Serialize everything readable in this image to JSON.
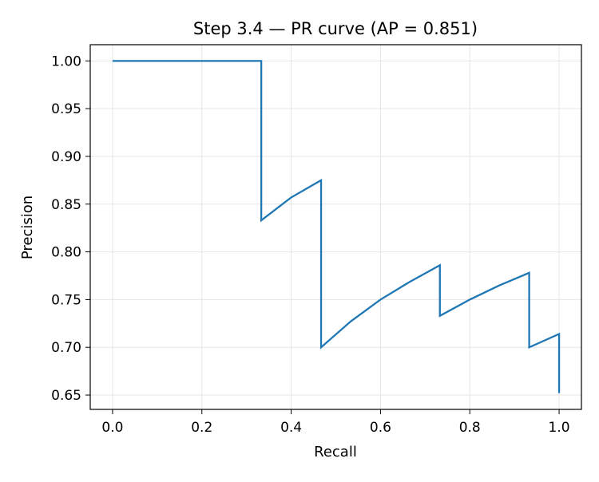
{
  "chart_data": {
    "type": "line",
    "title": "Step 3.4 — PR curve (AP = 0.851)",
    "xlabel": "Recall",
    "ylabel": "Precision",
    "xlim": [
      -0.05,
      1.05
    ],
    "ylim": [
      0.635,
      1.017
    ],
    "grid": true,
    "legend": "none",
    "line_color": "#1f77b4",
    "grid_color": "#e6e6e6",
    "x_ticks": [
      {
        "value": 0.0,
        "label": "0.0"
      },
      {
        "value": 0.2,
        "label": "0.2"
      },
      {
        "value": 0.4,
        "label": "0.4"
      },
      {
        "value": 0.6,
        "label": "0.6"
      },
      {
        "value": 0.8,
        "label": "0.8"
      },
      {
        "value": 1.0,
        "label": "1.0"
      }
    ],
    "y_ticks": [
      {
        "value": 0.65,
        "label": "0.65"
      },
      {
        "value": 0.7,
        "label": "0.70"
      },
      {
        "value": 0.75,
        "label": "0.75"
      },
      {
        "value": 0.8,
        "label": "0.80"
      },
      {
        "value": 0.85,
        "label": "0.85"
      },
      {
        "value": 0.9,
        "label": "0.90"
      },
      {
        "value": 0.95,
        "label": "0.95"
      },
      {
        "value": 1.0,
        "label": "1.00"
      }
    ],
    "series": [
      {
        "x": [
          0.0,
          0.333,
          0.333,
          0.4,
          0.467,
          0.467,
          0.533,
          0.6,
          0.667,
          0.733,
          0.733,
          0.8,
          0.867,
          0.933,
          0.933,
          1.0,
          1.0
        ],
        "y": [
          1.0,
          1.0,
          0.833,
          0.857,
          0.875,
          0.7,
          0.727,
          0.75,
          0.769,
          0.786,
          0.733,
          0.75,
          0.765,
          0.778,
          0.7,
          0.714,
          0.652
        ]
      }
    ]
  }
}
